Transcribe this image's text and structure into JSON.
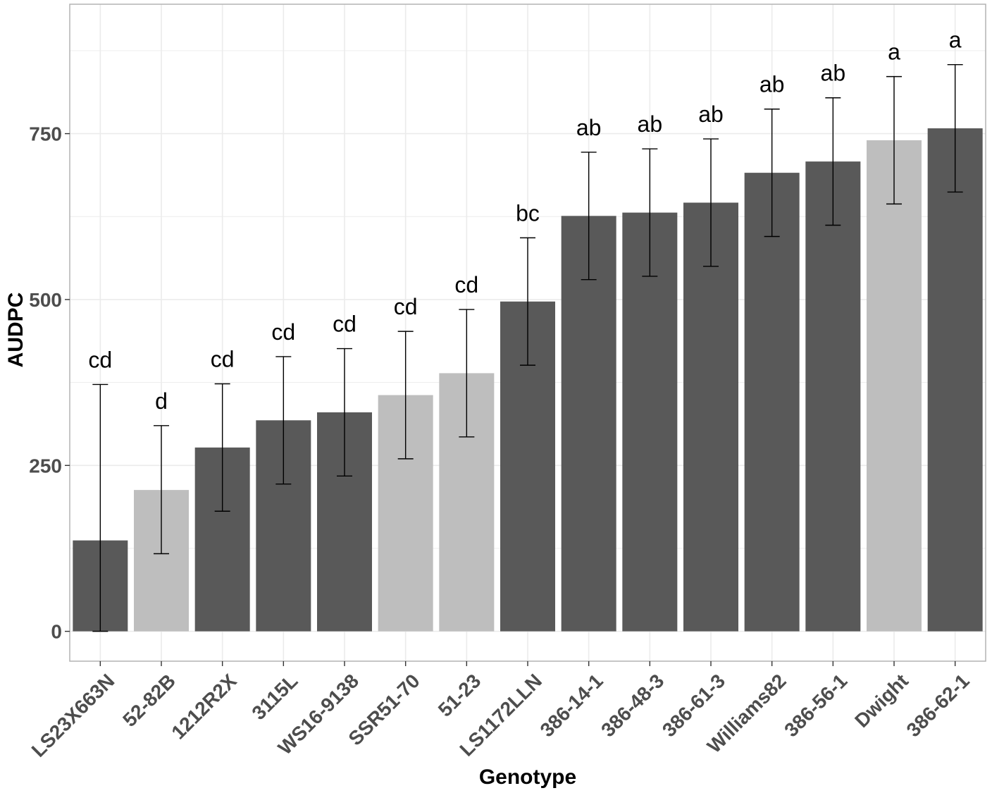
{
  "chart_data": {
    "type": "bar",
    "title": "",
    "xlabel": "Genotype",
    "ylabel": "AUDPC",
    "ylim": [
      -45,
      945
    ],
    "yticks": [
      0,
      250,
      500,
      750
    ],
    "grid": true,
    "legend": "none",
    "categories": [
      "LS23X663N",
      "52-82B",
      "1212R2X",
      "3115L",
      "WS16-9138",
      "SSR51-70",
      "51-23",
      "LS1172LLN",
      "386-14-1",
      "386-48-3",
      "386-61-3",
      "Williams82",
      "386-56-1",
      "Dwight",
      "386-62-1"
    ],
    "values": [
      137,
      213,
      277,
      318,
      330,
      356,
      389,
      497,
      626,
      631,
      646,
      691,
      708,
      740,
      758
    ],
    "error_upper": [
      372,
      310,
      373,
      414,
      426,
      452,
      485,
      593,
      722,
      727,
      742,
      787,
      804,
      836,
      854
    ],
    "error_lower": [
      0,
      117,
      181,
      222,
      234,
      260,
      293,
      401,
      530,
      535,
      550,
      595,
      612,
      644,
      662
    ],
    "letters": [
      "cd",
      "d",
      "cd",
      "cd",
      "cd",
      "cd",
      "cd",
      "bc",
      "ab",
      "ab",
      "ab",
      "ab",
      "ab",
      "a",
      "a"
    ],
    "groups": [
      "dark",
      "light",
      "dark",
      "dark",
      "dark",
      "light",
      "light",
      "dark",
      "dark",
      "dark",
      "dark",
      "dark",
      "dark",
      "light",
      "dark"
    ],
    "colors": {
      "dark": "#595959",
      "light": "#bebebe",
      "grid": "#ebebeb",
      "border": "#b3b3b3"
    }
  }
}
